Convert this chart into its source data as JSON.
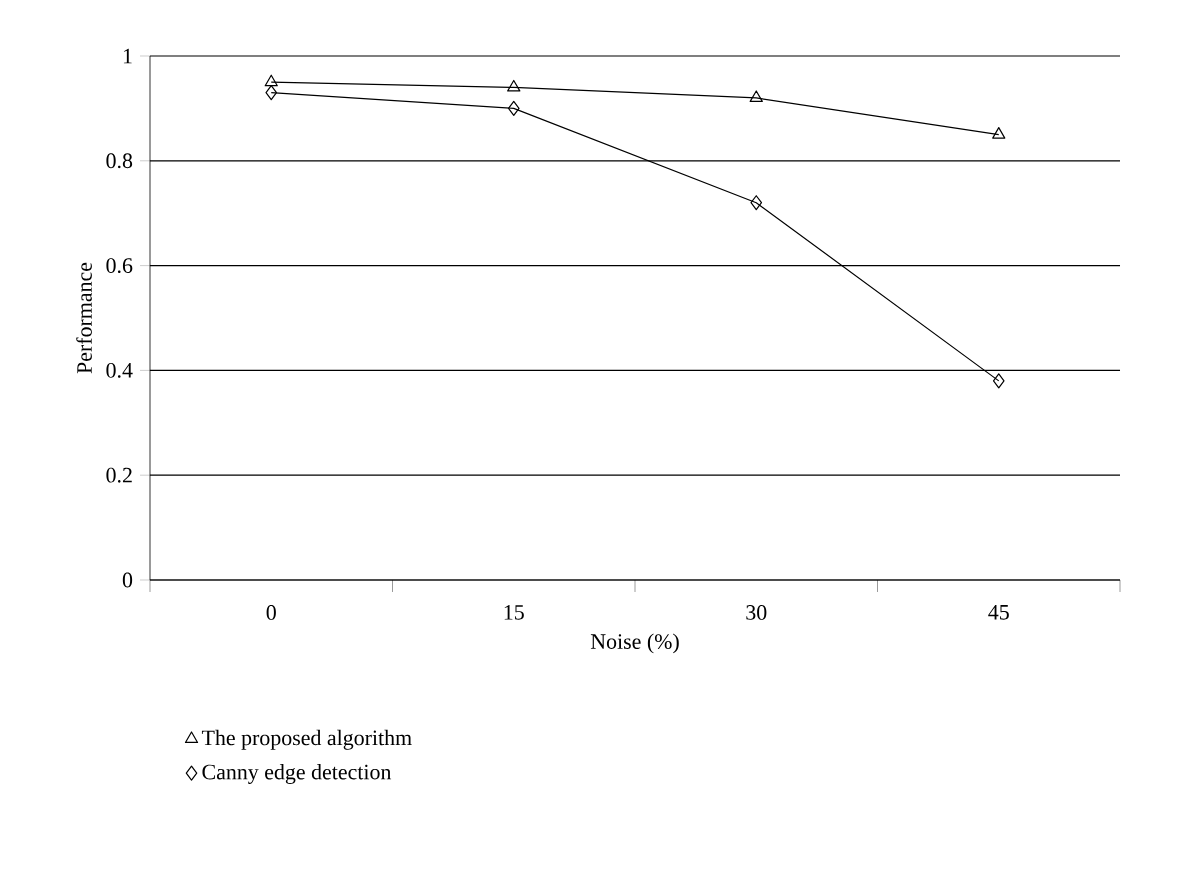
{
  "chart_data": {
    "type": "line",
    "xlabel": "Noise (%)",
    "ylabel": "Performance",
    "categories": [
      "0",
      "15",
      "30",
      "45"
    ],
    "ylim": [
      0,
      1
    ],
    "yticks": [
      0,
      0.2,
      0.4,
      0.6,
      0.8,
      1
    ],
    "grid": "y",
    "legend": "bottom",
    "series": [
      {
        "name": "The proposed algorithm",
        "color": "#000000",
        "marker": "triangle",
        "values": [
          0.95,
          0.94,
          0.92,
          0.85
        ]
      },
      {
        "name": "Canny edge detection",
        "color": "#000000",
        "marker": "diamond",
        "values": [
          0.93,
          0.9,
          0.72,
          0.38
        ]
      }
    ]
  }
}
